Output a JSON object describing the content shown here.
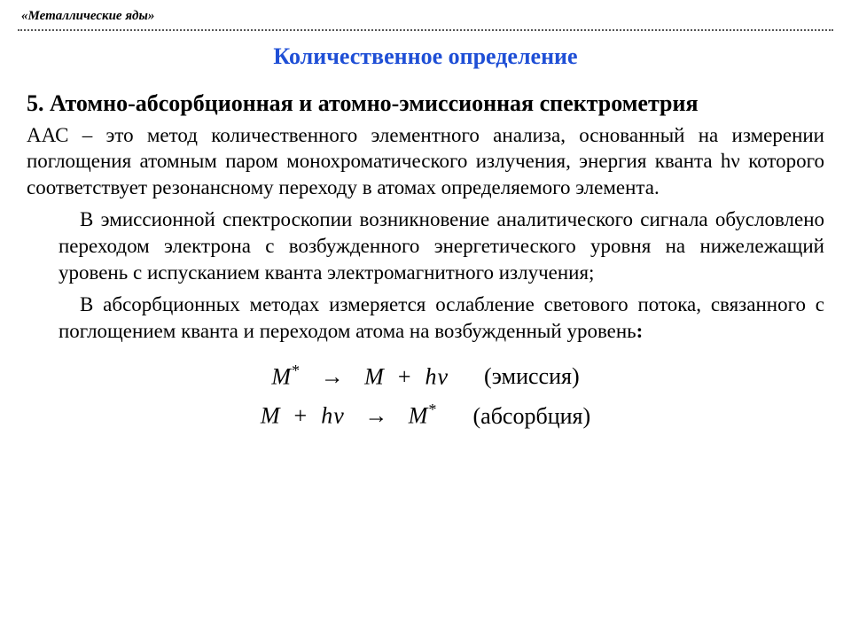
{
  "header": {
    "label": "«Металлические яды»"
  },
  "title": {
    "text": "Количественное определение",
    "color": "#1f4fd6"
  },
  "subheading": {
    "number": "5.",
    "text": "Атомно-абсорбционная и атомно-эмиссионная спектрометрия"
  },
  "paragraphs": {
    "p1": "ААС   –  это  метод  количественного  элементного  анализа,  основанный  на   измерении  поглощения  атомным  паром  монохроматического  излучения, энергия кванта  hν которого соответствует резонансному переходу в атомах  определяемого элемента.",
    "p2": "В эмиссионной спектроскопии возникновение аналитического сигнала обусловлено переходом электрона с возбужденного  энергетического  уровня на нижележащий уровень с испусканием кванта электромагнитного  излучения;",
    "p3_a": "В абсорбционных методах измеряется ослабление светового  потока, связанного с поглощением кванта и переходом атома на возбужденный уровень",
    "p3_colon": ":"
  },
  "equations": {
    "line1": {
      "lhs": "M*",
      "arrow": "→",
      "rhs": "M  +  hν",
      "label": "(эмиссия)"
    },
    "line2": {
      "lhs": "M  +  hν",
      "arrow": "→",
      "rhs": "M*",
      "label": "(абсорбция)"
    }
  },
  "style": {
    "body_color": "#000000",
    "title_fontsize": 26,
    "text_fontsize": 23,
    "eq_fontsize": 26
  }
}
